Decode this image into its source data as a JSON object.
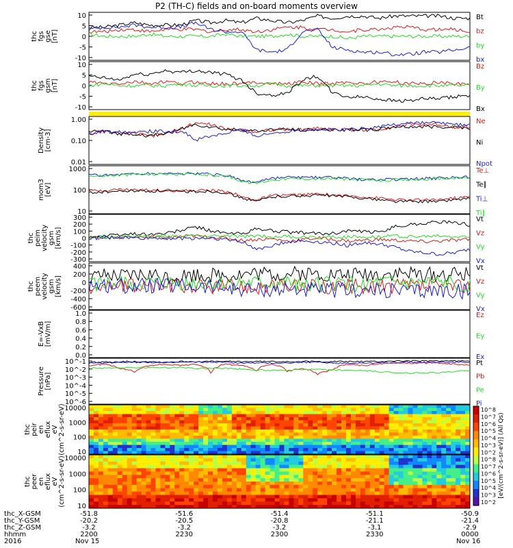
{
  "title": "P2 (TH-C) fields and on-board moments overview",
  "colors": {
    "black": "#000000",
    "red": "#e01818",
    "green": "#22dd22",
    "blue": "#1a1ad8",
    "yellow": "#ffee00"
  },
  "time_ticks": [
    "2200",
    "2230",
    "2300",
    "2330",
    "0000"
  ],
  "xaxis_rows": [
    {
      "label": "thc_X-GSM",
      "values": [
        "-51.8",
        "-51.6",
        "-51.4",
        "-51.1",
        "-50.9"
      ]
    },
    {
      "label": "thc_Y-GSM",
      "values": [
        "-20.2",
        "-20.5",
        "-20.8",
        "-21.1",
        "-21.4"
      ]
    },
    {
      "label": "thc_Z-GSM",
      "values": [
        "-3.2",
        "-3.2",
        "-3.2",
        "-3.1",
        "-2.9"
      ]
    },
    {
      "label": "hhmm",
      "values": [
        "2200",
        "2230",
        "2300",
        "2330",
        "0000"
      ]
    }
  ],
  "date_row": {
    "year": "2016",
    "start": "Nov 15",
    "end": "Nov 16"
  },
  "colorbar": {
    "label": "[eV/(cm^2-s-sr-eV)] (All Qs)",
    "ticks": [
      "10^8",
      "10^7",
      "10^6",
      "10^5",
      "10^4",
      "10^3",
      "10^2",
      "10^8",
      "10^7",
      "10^6",
      "10^5",
      "10^4",
      "10^3",
      "10^2"
    ]
  },
  "chart_data": [
    {
      "type": "line",
      "ylabel": "thc fgs gse [nT]",
      "ticks": [
        "10",
        "5",
        "0",
        "-5",
        "-10"
      ],
      "ylim": [
        -10,
        10
      ],
      "series": [
        {
          "name": "Bt",
          "color": "black",
          "values": [
            4,
            4,
            5,
            6,
            5,
            5,
            5,
            7,
            6,
            7,
            6,
            8,
            7,
            6,
            7,
            9,
            8,
            9,
            9,
            8,
            9,
            9,
            9,
            9,
            8,
            8
          ]
        },
        {
          "name": "bz",
          "color": "red",
          "values": [
            2,
            2,
            3,
            3,
            2,
            3,
            3,
            3,
            2,
            3,
            3,
            2,
            3,
            4,
            4,
            3,
            3,
            2,
            3,
            3,
            4,
            4,
            3,
            3,
            3,
            2
          ]
        },
        {
          "name": "by",
          "color": "green",
          "values": [
            1,
            0,
            0,
            0,
            1,
            0,
            0,
            0,
            0,
            1,
            0,
            0,
            0,
            1,
            0,
            0,
            0,
            -1,
            0,
            0,
            0,
            0,
            0,
            0,
            0,
            0
          ]
        },
        {
          "name": "bx",
          "color": "blue",
          "values": [
            3,
            4,
            4,
            5,
            4,
            4,
            4,
            6,
            3,
            2,
            2,
            -6,
            -7,
            -6,
            2,
            3,
            -5,
            -6,
            -7,
            -7,
            -8,
            -8,
            -7,
            -7,
            -6,
            -5
          ]
        }
      ]
    },
    {
      "type": "line",
      "ylabel": "thc fgs gsm [nT]",
      "ticks": [
        "10",
        "5",
        "0",
        "-5",
        "-10"
      ],
      "ylim": [
        -12,
        12
      ],
      "series": [
        {
          "name": "Bz",
          "color": "red",
          "values": [
            2,
            1,
            1,
            2,
            1,
            2,
            1,
            2,
            1,
            1,
            1,
            2,
            1,
            1,
            2,
            1,
            1,
            2,
            1,
            2,
            2,
            1,
            1,
            2,
            1,
            1
          ]
        },
        {
          "name": "By",
          "color": "green",
          "values": [
            0,
            1,
            0,
            0,
            0,
            0,
            1,
            0,
            0,
            0,
            0,
            0,
            1,
            0,
            0,
            0,
            0,
            0,
            0,
            1,
            0,
            0,
            0,
            0,
            0,
            0
          ]
        },
        {
          "name": "Bx",
          "color": "black",
          "values": [
            5,
            4,
            3,
            6,
            6,
            8,
            7,
            8,
            7,
            6,
            3,
            -4,
            -5,
            -4,
            3,
            5,
            -4,
            -6,
            -6,
            -7,
            -8,
            -8,
            -7,
            -7,
            -6,
            -5
          ]
        }
      ]
    },
    {
      "type": "line",
      "ylabel": "Density [cm-3]",
      "ticks": [
        "1.00",
        "0.10",
        "0.01"
      ],
      "ylim": [
        0.01,
        1.0
      ],
      "log": true,
      "series": [
        {
          "name": "Ne",
          "color": "red",
          "values": [
            0.2,
            0.25,
            0.2,
            0.2,
            0.15,
            0.2,
            0.3,
            0.6,
            0.5,
            0.3,
            0.3,
            0.25,
            0.3,
            0.3,
            0.3,
            0.35,
            0.3,
            0.3,
            0.3,
            0.3,
            0.4,
            0.5,
            0.5,
            0.5,
            0.4,
            0.4
          ]
        },
        {
          "name": "Ni",
          "color": "black",
          "values": [
            0.25,
            0.25,
            0.2,
            0.2,
            0.15,
            0.2,
            0.3,
            0.5,
            0.4,
            0.3,
            0.3,
            0.25,
            0.3,
            0.3,
            0.3,
            0.3,
            0.3,
            0.3,
            0.3,
            0.3,
            0.4,
            0.4,
            0.4,
            0.4,
            0.4,
            0.35
          ]
        },
        {
          "name": "Npot",
          "color": "blue",
          "values": [
            0.2,
            0.25,
            0.25,
            0.25,
            0.25,
            0.25,
            0.25,
            0.1,
            0.15,
            0.2,
            0.3,
            0.15,
            0.2,
            0.25,
            0.3,
            0.3,
            0.3,
            0.3,
            0.35,
            0.4,
            0.5,
            0.6,
            0.6,
            0.6,
            0.5,
            0.5
          ]
        }
      ]
    },
    {
      "type": "line",
      "ylabel": "mom3 [eV]",
      "ticks": [
        "1000",
        "100",
        "10"
      ],
      "ylim": [
        10,
        3000
      ],
      "log": true,
      "series": [
        {
          "name": "Te⊥",
          "color": "red",
          "values": [
            150,
            160,
            180,
            170,
            170,
            170,
            150,
            160,
            160,
            140,
            70,
            45,
            80,
            90,
            90,
            100,
            90,
            80,
            70,
            60,
            50,
            45,
            50,
            50,
            60,
            70
          ]
        },
        {
          "name": "Te∥",
          "color": "black",
          "values": [
            120,
            130,
            140,
            150,
            140,
            150,
            130,
            140,
            140,
            120,
            60,
            40,
            70,
            80,
            80,
            90,
            80,
            70,
            60,
            50,
            40,
            40,
            40,
            40,
            50,
            60
          ]
        },
        {
          "name": "Ti⊥",
          "color": "blue",
          "values": [
            1100,
            1100,
            1200,
            1300,
            1300,
            1400,
            1300,
            1300,
            1200,
            1100,
            500,
            450,
            700,
            800,
            800,
            800,
            800,
            700,
            650,
            600,
            650,
            650,
            700,
            750,
            800,
            900
          ]
        },
        {
          "name": "Ti∥",
          "color": "green",
          "values": [
            1000,
            1000,
            1100,
            1200,
            1200,
            1300,
            1200,
            1200,
            1100,
            1000,
            500,
            400,
            600,
            700,
            700,
            700,
            700,
            650,
            600,
            550,
            600,
            600,
            650,
            700,
            750,
            800
          ]
        }
      ]
    },
    {
      "type": "line",
      "ylabel": "thc peim velocity gsm [km/s]",
      "ticks": [
        "300",
        "200",
        "100",
        "0",
        "-100",
        "-200",
        "-300"
      ],
      "ylim": [
        -300,
        300
      ],
      "series": [
        {
          "name": "Vt",
          "color": "black",
          "values": [
            20,
            30,
            40,
            60,
            50,
            60,
            100,
            150,
            100,
            60,
            60,
            120,
            100,
            80,
            70,
            60,
            60,
            100,
            80,
            80,
            150,
            180,
            200,
            220,
            200,
            180
          ]
        },
        {
          "name": "Vz",
          "color": "red",
          "values": [
            0,
            10,
            0,
            20,
            10,
            0,
            20,
            30,
            10,
            0,
            -30,
            -20,
            -10,
            -40,
            -20,
            0,
            -20,
            -40,
            -30,
            -20,
            -30,
            -40,
            -50,
            -40,
            -30,
            -20
          ]
        },
        {
          "name": "Vy",
          "color": "green",
          "values": [
            10,
            10,
            20,
            20,
            20,
            20,
            20,
            30,
            30,
            20,
            20,
            30,
            20,
            20,
            10,
            10,
            20,
            10,
            20,
            20,
            30,
            20,
            20,
            30,
            20,
            10
          ]
        },
        {
          "name": "Vx",
          "color": "blue",
          "values": [
            0,
            0,
            10,
            0,
            0,
            0,
            -10,
            0,
            0,
            -20,
            -50,
            -150,
            -100,
            -50,
            -40,
            -50,
            -70,
            -100,
            -60,
            -80,
            -120,
            -180,
            -200,
            -220,
            -200,
            -150
          ]
        }
      ]
    },
    {
      "type": "line",
      "ylabel": "thc peem velocity gsm [km/s]",
      "ticks": [
        "400",
        "200",
        "0",
        "-200",
        "-400",
        "-600"
      ],
      "ylim": [
        -600,
        500
      ],
      "series": [
        {
          "name": "Vt",
          "color": "black",
          "values": [
            150,
            200,
            180,
            220,
            250,
            200,
            220,
            250,
            240,
            230,
            260,
            280,
            260,
            250,
            270,
            260,
            240,
            230,
            250,
            260,
            280,
            270,
            250,
            240,
            260,
            240
          ]
        },
        {
          "name": "Vz",
          "color": "red",
          "values": [
            -50,
            -40,
            -60,
            -40,
            -30,
            -50,
            -40,
            -50,
            -60,
            -50,
            -40,
            -60,
            -50,
            -40,
            -50,
            -60,
            -50,
            -40,
            -50,
            -60,
            -50,
            -40,
            -50,
            -60,
            -50,
            -40
          ]
        },
        {
          "name": "Vy",
          "color": "green",
          "values": [
            0,
            10,
            20,
            0,
            10,
            20,
            0,
            10,
            20,
            0,
            10,
            20,
            0,
            10,
            20,
            0,
            10,
            20,
            0,
            10,
            20,
            0,
            10,
            20,
            0,
            10
          ]
        },
        {
          "name": "Vx",
          "color": "blue",
          "values": [
            -20,
            -20,
            -30,
            -40,
            -30,
            -50,
            -40,
            -60,
            -80,
            -100,
            -120,
            -140,
            -130,
            -120,
            -140,
            -160,
            -150,
            -140,
            -160,
            -170,
            -160,
            -180,
            -170,
            -160,
            -170,
            -180
          ]
        }
      ]
    },
    {
      "type": "line",
      "ylabel": "E=-VxB [mV/m]",
      "ticks": [
        "1.0",
        "0.8",
        "0.6",
        "0.4",
        "0.2",
        "0.0"
      ],
      "ylim": [
        0,
        1
      ],
      "series": [
        {
          "name": "Ez",
          "color": "red",
          "values": []
        },
        {
          "name": "Ey",
          "color": "green",
          "values": []
        },
        {
          "name": "Ex",
          "color": "blue",
          "values": []
        }
      ]
    },
    {
      "type": "line",
      "ylabel": "Pressure [nPa]",
      "ticks": [
        "10^-1",
        "10^-2",
        "10^-3",
        "10^-4",
        "10^-5",
        "10^-6"
      ],
      "ylim": [
        1e-06,
        0.1
      ],
      "log": true,
      "series": [
        {
          "name": "Pt",
          "color": "black",
          "values": [
            0.05,
            0.05,
            0.06,
            0.06,
            0.06,
            0.05,
            0.06,
            0.06,
            0.06,
            0.06,
            0.06,
            0.06,
            0.06,
            0.06,
            0.06,
            0.06,
            0.06,
            0.06,
            0.06,
            0.06,
            0.07,
            0.07,
            0.07,
            0.07,
            0.07,
            0.07
          ]
        },
        {
          "name": "Pb",
          "color": "red",
          "values": [
            0.02,
            0.03,
            0.01,
            0.004,
            0.02,
            0.03,
            0.02,
            0.03,
            0.003,
            0.03,
            0.02,
            0.005,
            0.03,
            0.004,
            0.01,
            0.002,
            0.006,
            0.03,
            0.02,
            0.03,
            0.04,
            0.04,
            0.04,
            0.04,
            0.03,
            0.02
          ]
        },
        {
          "name": "Pe",
          "color": "green",
          "values": [
            0.01,
            0.01,
            0.012,
            0.012,
            0.012,
            0.012,
            0.012,
            0.01,
            0.01,
            0.01,
            0.008,
            0.006,
            0.006,
            0.006,
            0.007,
            0.007,
            0.006,
            0.006,
            0.005,
            0.004,
            0.003,
            0.003,
            0.003,
            0.003,
            0.004,
            0.006
          ]
        },
        {
          "name": "Pi",
          "color": "blue",
          "values": [
            0.04,
            0.04,
            0.05,
            0.05,
            0.05,
            0.04,
            0.05,
            0.05,
            0.05,
            0.05,
            0.04,
            0.04,
            0.04,
            0.04,
            0.05,
            0.05,
            0.04,
            0.04,
            0.04,
            0.04,
            0.05,
            0.05,
            0.05,
            0.05,
            0.05,
            0.05
          ]
        }
      ]
    },
    {
      "type": "heatmap",
      "ylabel": "thc peir en eflux eV (cm^2-s-sr-eV)",
      "ticks": [
        "10000",
        "1000",
        "100",
        "10"
      ]
    },
    {
      "type": "heatmap",
      "ylabel": "thc peer en eflux eV (cm^2-s-sr-eV)",
      "ticks": [
        "10000",
        "1000",
        "100",
        "10"
      ]
    }
  ]
}
